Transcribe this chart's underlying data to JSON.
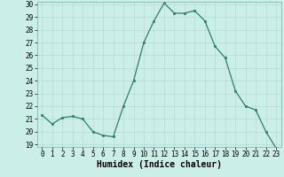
{
  "x": [
    0,
    1,
    2,
    3,
    4,
    5,
    6,
    7,
    8,
    9,
    10,
    11,
    12,
    13,
    14,
    15,
    16,
    17,
    18,
    19,
    20,
    21,
    22,
    23
  ],
  "y": [
    21.3,
    20.6,
    21.1,
    21.2,
    21.0,
    20.0,
    19.7,
    19.6,
    22.0,
    24.0,
    27.0,
    28.7,
    30.1,
    29.3,
    29.3,
    29.5,
    28.7,
    26.7,
    25.8,
    23.2,
    22.0,
    21.7,
    20.0,
    18.7
  ],
  "xlabel": "Humidex (Indice chaleur)",
  "ylim": [
    19,
    30
  ],
  "xlim_min": -0.5,
  "xlim_max": 23.5,
  "yticks": [
    19,
    20,
    21,
    22,
    23,
    24,
    25,
    26,
    27,
    28,
    29,
    30
  ],
  "xticks": [
    0,
    1,
    2,
    3,
    4,
    5,
    6,
    7,
    8,
    9,
    10,
    11,
    12,
    13,
    14,
    15,
    16,
    17,
    18,
    19,
    20,
    21,
    22,
    23
  ],
  "line_color": "#2e7d6e",
  "marker_color": "#2e7d6e",
  "bg_color": "#cceee8",
  "grid_color": "#b0d8d4",
  "xlabel_fontsize": 7,
  "tick_fontsize": 5.5,
  "marker_size": 2.0,
  "line_width": 0.9
}
